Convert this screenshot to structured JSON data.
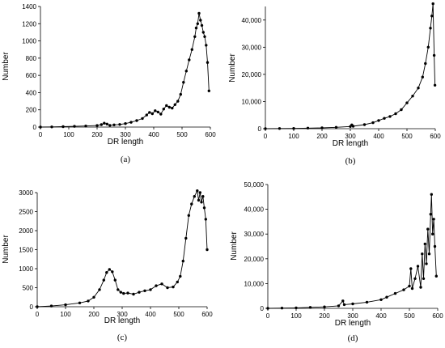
{
  "figure": {
    "panels": [
      {
        "label": "(a)",
        "chart_data": {
          "type": "line",
          "marker": "filled-circle",
          "color": "#000000",
          "xlabel": "DR length",
          "ylabel": "Number",
          "xlim": [
            0,
            600
          ],
          "ylim": [
            0,
            1400
          ],
          "xticks": [
            0,
            100,
            200,
            300,
            400,
            500,
            600
          ],
          "yticks": [
            0,
            200,
            400,
            600,
            800,
            1000,
            1200,
            1400
          ],
          "ytick_labels": [
            "0",
            "200",
            "400",
            "600",
            "800",
            "1000",
            "1200",
            "1400"
          ],
          "series": [
            {
              "x": [
                0,
                40,
                80,
                120,
                160,
                200,
                215,
                225,
                235,
                245,
                260,
                280,
                300,
                320,
                340,
                360,
                375,
                385,
                395,
                405,
                415,
                425,
                435,
                445,
                455,
                465,
                475,
                485,
                495,
                505,
                515,
                525,
                535,
                545,
                550,
                555,
                560,
                565,
                570,
                575,
                580,
                585,
                590,
                595
              ],
              "y": [
                0,
                2,
                5,
                8,
                12,
                18,
                28,
                45,
                35,
                20,
                25,
                30,
                40,
                55,
                75,
                100,
                140,
                170,
                155,
                190,
                175,
                150,
                210,
                250,
                230,
                220,
                260,
                300,
                380,
                520,
                650,
                780,
                900,
                1050,
                1150,
                1200,
                1320,
                1240,
                1180,
                1100,
                1050,
                950,
                750,
                420
              ]
            }
          ]
        }
      },
      {
        "label": "(b)",
        "chart_data": {
          "type": "line",
          "marker": "filled-circle",
          "color": "#000000",
          "xlabel": "DR length",
          "ylabel": "Number",
          "xlim": [
            0,
            600
          ],
          "ylim": [
            0,
            45000
          ],
          "xticks": [
            0,
            100,
            200,
            300,
            400,
            500,
            600
          ],
          "yticks": [
            0,
            10000,
            20000,
            30000,
            40000
          ],
          "ytick_labels": [
            "0",
            "10,000",
            "20,000",
            "30,000",
            "40,000"
          ],
          "series": [
            {
              "x": [
                0,
                50,
                100,
                150,
                200,
                250,
                300,
                305,
                310,
                350,
                380,
                400,
                420,
                440,
                460,
                480,
                500,
                520,
                540,
                555,
                565,
                575,
                583,
                588,
                592,
                596,
                599
              ],
              "y": [
                0,
                50,
                100,
                200,
                300,
                500,
                800,
                1400,
                900,
                1500,
                2200,
                3000,
                3800,
                4500,
                5500,
                7000,
                9500,
                12000,
                15000,
                19000,
                24000,
                30000,
                37000,
                41500,
                46000,
                27000,
                16000
              ]
            }
          ]
        }
      },
      {
        "label": "(c)",
        "chart_data": {
          "type": "line",
          "marker": "filled-circle",
          "color": "#000000",
          "xlabel": "DR length",
          "ylabel": "Number",
          "xlim": [
            0,
            600
          ],
          "ylim": [
            0,
            3000
          ],
          "xticks": [
            0,
            100,
            200,
            300,
            400,
            500,
            600
          ],
          "yticks": [
            0,
            500,
            1000,
            1500,
            2000,
            2500,
            3000
          ],
          "ytick_labels": [
            "0",
            "500",
            "1000",
            "1500",
            "2000",
            "2500",
            "3000"
          ],
          "series": [
            {
              "x": [
                0,
                50,
                100,
                150,
                180,
                200,
                220,
                235,
                245,
                255,
                265,
                275,
                285,
                295,
                305,
                320,
                340,
                360,
                380,
                400,
                420,
                440,
                460,
                480,
                495,
                505,
                515,
                525,
                535,
                545,
                555,
                565,
                570,
                575,
                580,
                585,
                590,
                595,
                600
              ],
              "y": [
                0,
                20,
                50,
                100,
                150,
                250,
                450,
                700,
                900,
                980,
                920,
                700,
                450,
                380,
                350,
                360,
                330,
                380,
                420,
                450,
                550,
                600,
                500,
                520,
                650,
                800,
                1200,
                1800,
                2400,
                2700,
                2900,
                3050,
                2800,
                3000,
                2750,
                2900,
                2600,
                2300,
                1500
              ]
            }
          ]
        }
      },
      {
        "label": "(d)",
        "chart_data": {
          "type": "line",
          "marker": "filled-circle",
          "color": "#000000",
          "xlabel": "DR length",
          "ylabel": "Number",
          "xlim": [
            0,
            600
          ],
          "ylim": [
            0,
            50000
          ],
          "xticks": [
            0,
            100,
            200,
            300,
            400,
            500,
            600
          ],
          "yticks": [
            0,
            10000,
            20000,
            30000,
            40000,
            50000
          ],
          "ytick_labels": [
            "0",
            "10,000",
            "20,000",
            "30,000",
            "40,000",
            "50,000"
          ],
          "series": [
            {
              "x": [
                0,
                50,
                100,
                150,
                200,
                250,
                265,
                270,
                300,
                350,
                400,
                420,
                450,
                480,
                500,
                505,
                510,
                520,
                530,
                540,
                545,
                550,
                555,
                560,
                565,
                570,
                575,
                578,
                582,
                586,
                590,
                595
              ],
              "y": [
                0,
                100,
                200,
                400,
                600,
                1000,
                3000,
                1500,
                1800,
                2500,
                3500,
                4500,
                6000,
                7500,
                9000,
                16000,
                8000,
                12000,
                17000,
                8500,
                22000,
                12000,
                26000,
                18000,
                32000,
                22000,
                38000,
                46000,
                30000,
                36000,
                25000,
                13000
              ]
            }
          ]
        }
      }
    ]
  }
}
